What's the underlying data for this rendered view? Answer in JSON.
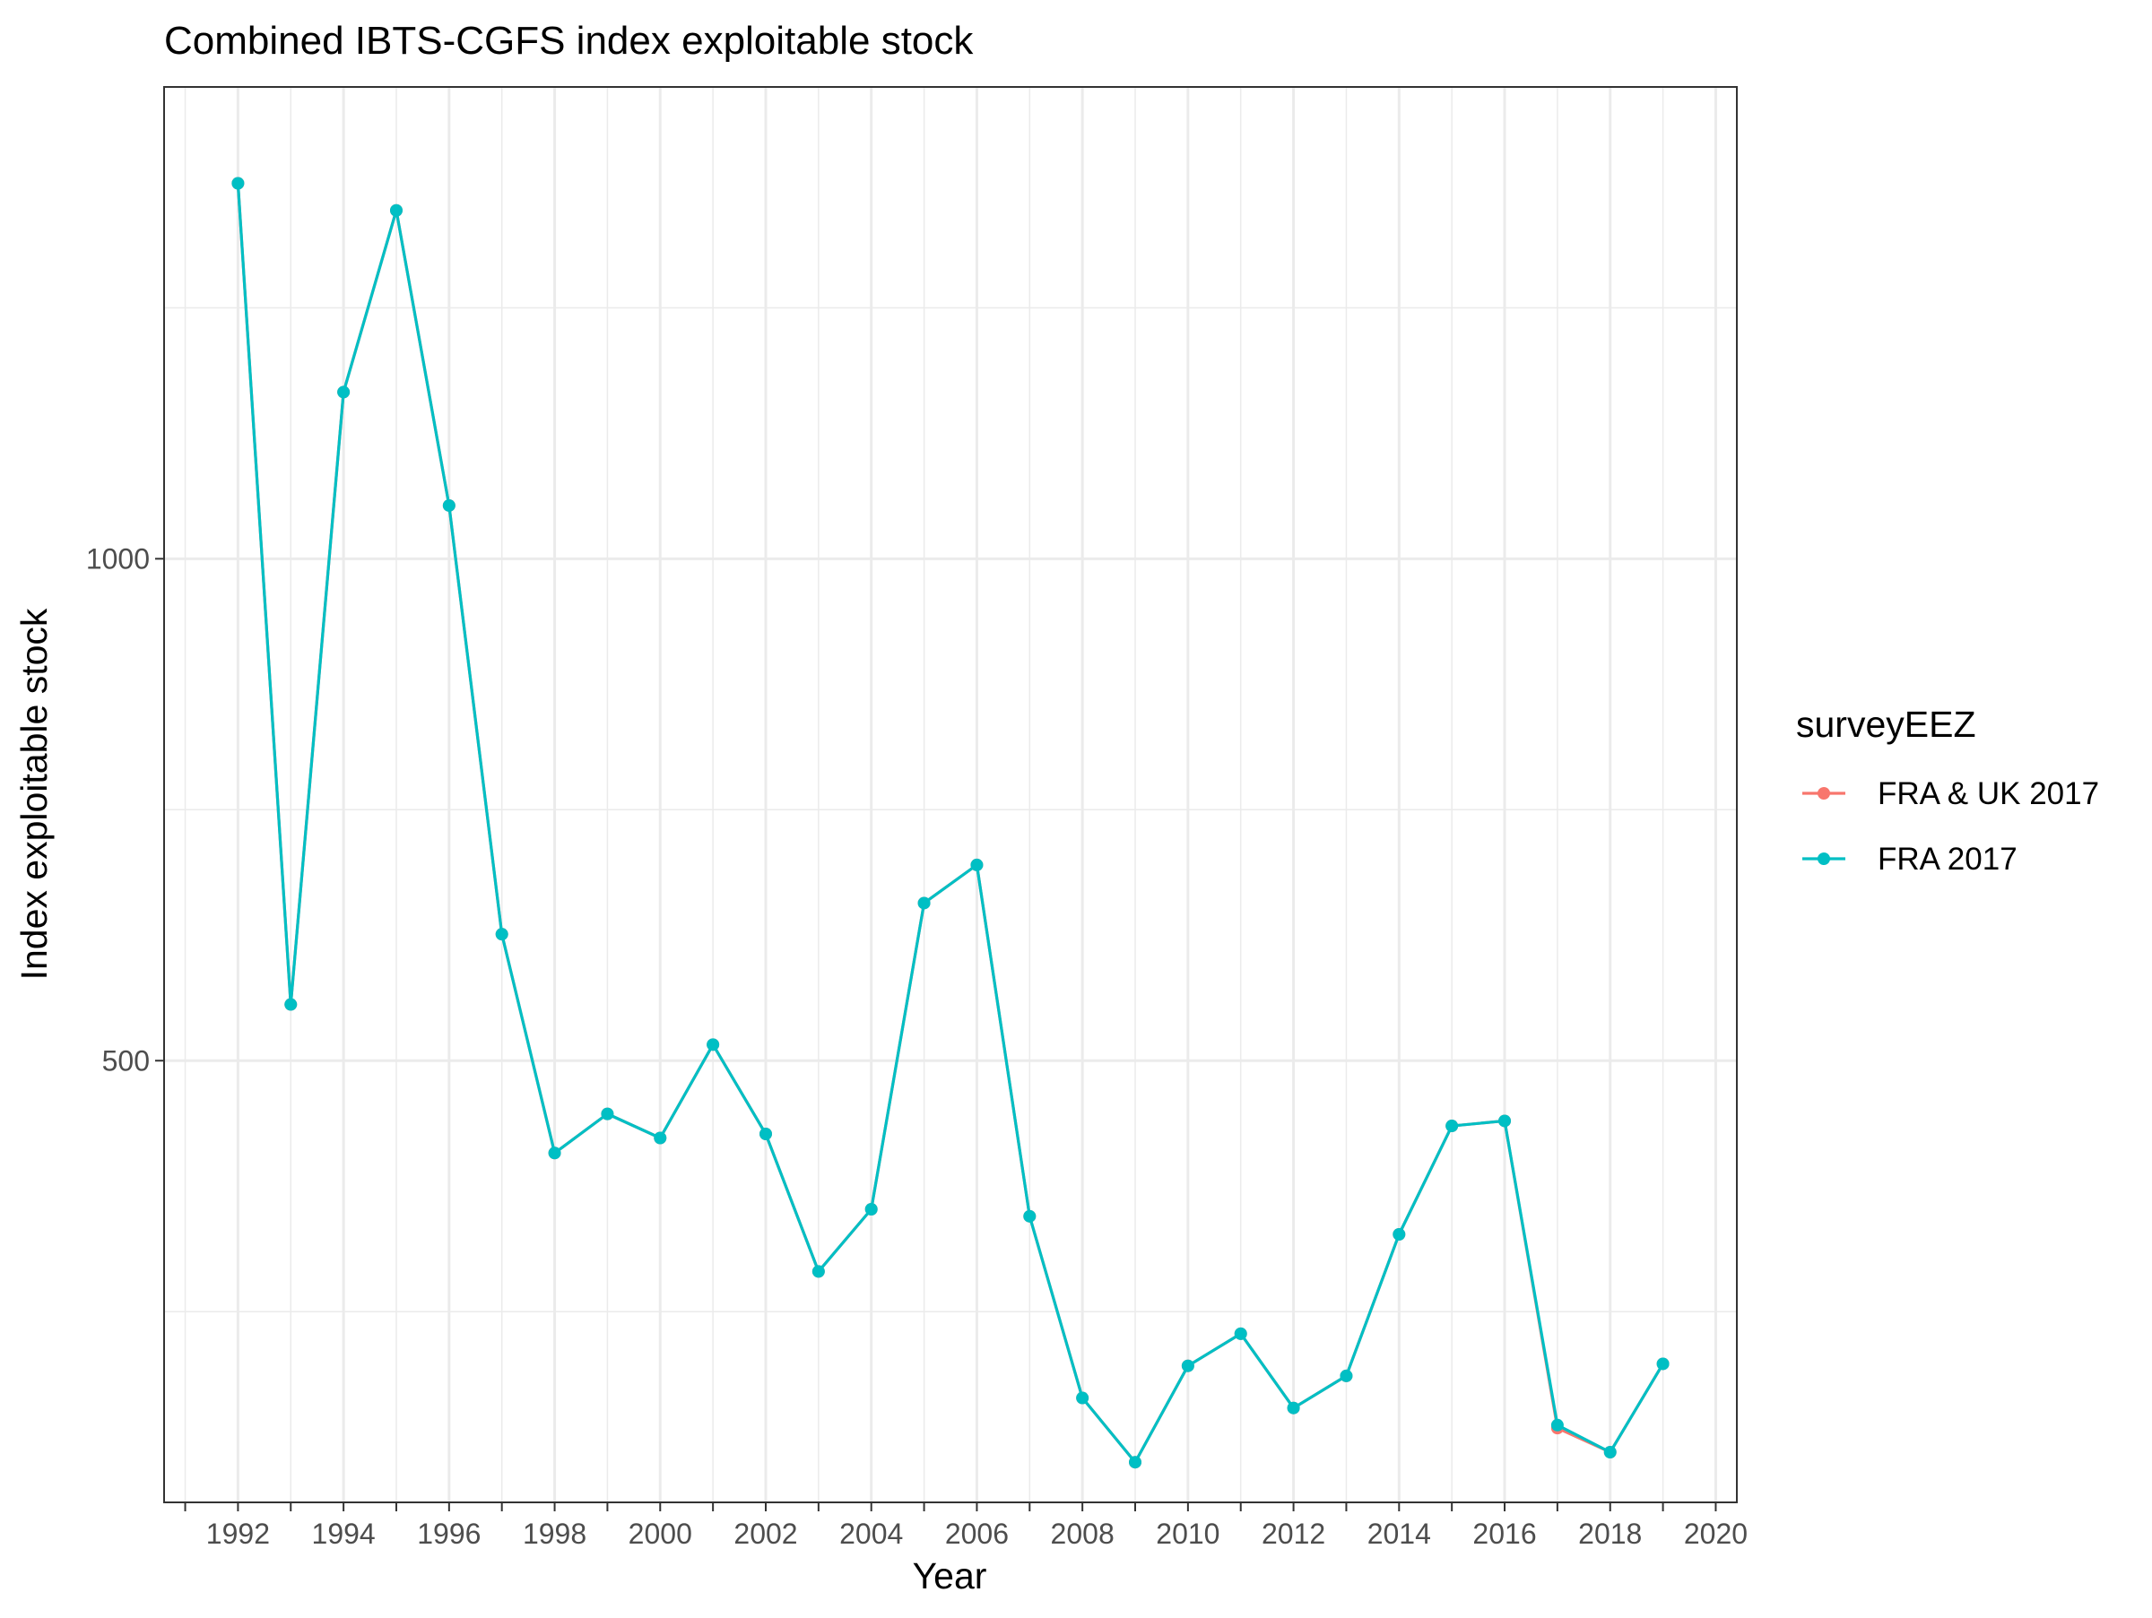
{
  "chart_data": {
    "type": "line",
    "title": "Combined IBTS-CGFS index exploitable stock",
    "xlabel": "Year",
    "ylabel": "Index exploitable stock",
    "xlim": [
      1990.6,
      2020.4
    ],
    "ylim": [
      60,
      1470
    ],
    "x_ticks": [
      1992,
      1994,
      1996,
      1998,
      2000,
      2002,
      2004,
      2006,
      2008,
      2010,
      2012,
      2014,
      2016,
      2018,
      2020
    ],
    "x_minor_ticks": [
      1991,
      1993,
      1995,
      1997,
      1999,
      2001,
      2003,
      2005,
      2007,
      2009,
      2011,
      2013,
      2015,
      2017,
      2019
    ],
    "y_ticks": [
      500,
      1000
    ],
    "y_minor_grid": [
      250,
      750,
      1250
    ],
    "grid": true,
    "legend": {
      "title": "surveyEEZ",
      "position": "right"
    },
    "series": [
      {
        "name": "FRA & UK 2017",
        "color": "#F8766D",
        "x": [
          1992,
          1993,
          1994,
          1995,
          1996,
          1997,
          1998,
          1999,
          2000,
          2001,
          2002,
          2003,
          2004,
          2005,
          2006,
          2007,
          2008,
          2009,
          2010,
          2011,
          2012,
          2013,
          2014,
          2015,
          2016,
          2017,
          2018,
          2019
        ],
        "values": [
          1374,
          556,
          1166,
          1347,
          1053,
          626,
          408,
          447,
          423,
          516,
          427,
          290,
          352,
          657,
          695,
          345,
          164,
          100,
          196,
          228,
          154,
          186,
          327,
          435,
          440,
          134,
          110,
          198
        ]
      },
      {
        "name": "FRA 2017",
        "color": "#00BFC4",
        "x": [
          1992,
          1993,
          1994,
          1995,
          1996,
          1997,
          1998,
          1999,
          2000,
          2001,
          2002,
          2003,
          2004,
          2005,
          2006,
          2007,
          2008,
          2009,
          2010,
          2011,
          2012,
          2013,
          2014,
          2015,
          2016,
          2017,
          2018,
          2019
        ],
        "values": [
          1374,
          556,
          1166,
          1347,
          1053,
          626,
          408,
          447,
          423,
          516,
          427,
          290,
          352,
          657,
          695,
          345,
          164,
          100,
          196,
          228,
          154,
          186,
          327,
          435,
          440,
          137,
          110,
          198
        ]
      }
    ]
  }
}
